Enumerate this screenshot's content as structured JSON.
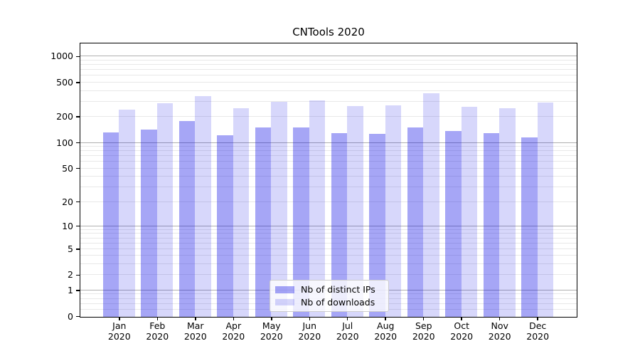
{
  "chart_data": {
    "type": "bar",
    "title": "CNTools 2020",
    "categories": [
      "Jan",
      "Feb",
      "Mar",
      "Apr",
      "May",
      "Jun",
      "Jul",
      "Aug",
      "Sep",
      "Oct",
      "Nov",
      "Dec"
    ],
    "category_year": "2020",
    "series": [
      {
        "name": "Nb of distinct IPs",
        "color": "rgba(0,0,230,0.35)",
        "values": [
          134,
          144,
          182,
          124,
          152,
          152,
          131,
          129,
          152,
          138,
          130,
          116
        ]
      },
      {
        "name": "Nb of downloads",
        "color": "rgba(0,0,230,0.155)",
        "values": [
          245,
          290,
          350,
          253,
          303,
          316,
          267,
          272,
          378,
          264,
          252,
          297
        ]
      }
    ],
    "xlabel": "",
    "ylabel": "",
    "yscale": "log-like (position ~ log10(1+value))",
    "yticks": [
      0,
      1,
      2,
      5,
      10,
      20,
      50,
      100,
      200,
      500,
      1000
    ],
    "ylim": [
      0,
      1400
    ],
    "grid": "horizontal, major at powers of 10, minor between",
    "legend_position": "lower center"
  }
}
